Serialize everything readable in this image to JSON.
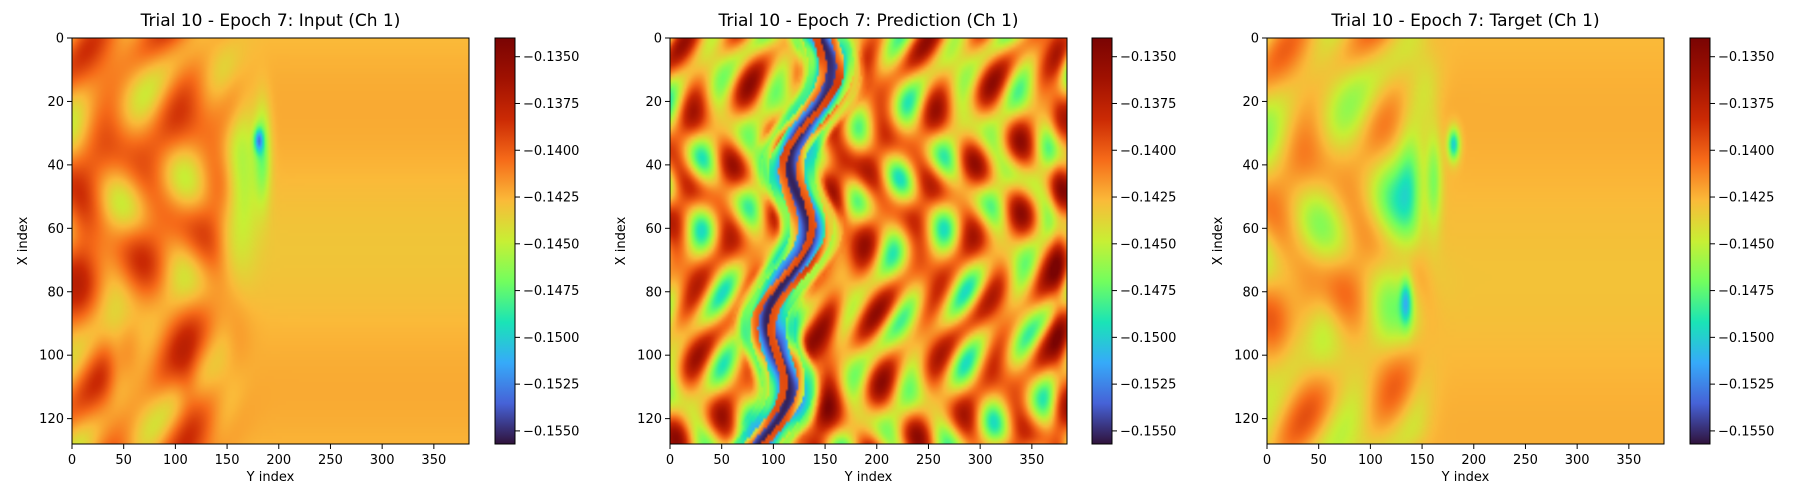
{
  "chart_data": [
    {
      "type": "heatmap",
      "title": "Trial 10 - Epoch 7: Input (Ch 1)",
      "xlabel": "Y index",
      "ylabel": "X index",
      "xlim": [
        0,
        384
      ],
      "ylim": [
        128,
        0
      ],
      "xticks": [
        0,
        50,
        100,
        150,
        200,
        250,
        300,
        350
      ],
      "yticks": [
        0,
        20,
        40,
        60,
        80,
        100,
        120
      ],
      "colorbar": {
        "range": [
          -0.1557,
          -0.134
        ],
        "ticks": [
          "-0.1350",
          "-0.1375",
          "-0.1400",
          "-0.1425",
          "-0.1450",
          "-0.1475",
          "-0.1500",
          "-0.1525",
          "-0.1550"
        ],
        "tick_values": [
          -0.135,
          -0.1375,
          -0.14,
          -0.1425,
          -0.145,
          -0.1475,
          -0.15,
          -0.1525,
          -0.155
        ],
        "colormap": "turbo"
      },
      "pattern": "input"
    },
    {
      "type": "heatmap",
      "title": "Trial 10 - Epoch 7: Prediction (Ch 1)",
      "xlabel": "Y index",
      "ylabel": "X index",
      "xlim": [
        0,
        384
      ],
      "ylim": [
        128,
        0
      ],
      "xticks": [
        0,
        50,
        100,
        150,
        200,
        250,
        300,
        350
      ],
      "yticks": [
        0,
        20,
        40,
        60,
        80,
        100,
        120
      ],
      "colorbar": {
        "range": [
          -0.1557,
          -0.134
        ],
        "ticks": [
          "-0.1350",
          "-0.1375",
          "-0.1400",
          "-0.1425",
          "-0.1450",
          "-0.1475",
          "-0.1500",
          "-0.1525",
          "-0.1550"
        ],
        "tick_values": [
          -0.135,
          -0.1375,
          -0.14,
          -0.1425,
          -0.145,
          -0.1475,
          -0.15,
          -0.1525,
          -0.155
        ],
        "colormap": "turbo"
      },
      "pattern": "prediction"
    },
    {
      "type": "heatmap",
      "title": "Trial 10 - Epoch 7: Target (Ch 1)",
      "xlabel": "Y index",
      "ylabel": "X index",
      "xlim": [
        0,
        384
      ],
      "ylim": [
        128,
        0
      ],
      "xticks": [
        0,
        50,
        100,
        150,
        200,
        250,
        300,
        350
      ],
      "yticks": [
        0,
        20,
        40,
        60,
        80,
        100,
        120
      ],
      "colorbar": {
        "range": [
          -0.1557,
          -0.134
        ],
        "ticks": [
          "-0.1350",
          "-0.1375",
          "-0.1400",
          "-0.1425",
          "-0.1450",
          "-0.1475",
          "-0.1500",
          "-0.1525",
          "-0.1550"
        ],
        "tick_values": [
          -0.135,
          -0.1375,
          -0.14,
          -0.1425,
          -0.145,
          -0.1475,
          -0.15,
          -0.1525,
          -0.155
        ],
        "colormap": "turbo"
      },
      "pattern": "target"
    }
  ]
}
